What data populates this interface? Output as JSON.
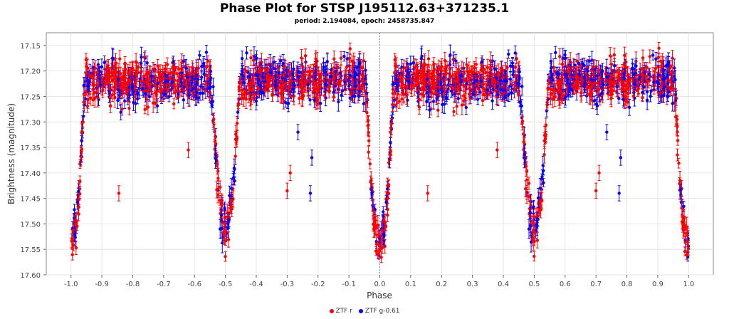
{
  "chart_data": {
    "type": "scatter",
    "title": "Phase Plot for STSP J195112.63+371235.1",
    "subtitle": "period: 2.194084, epoch: 2458735.847",
    "xlabel": "Phase",
    "ylabel": "Brightness (magnitude)",
    "xlim": [
      -1.08,
      1.08
    ],
    "ylim": [
      17.6,
      17.125
    ],
    "y_inverted": true,
    "x_ticks": [
      "-1.0",
      "-0.9",
      "-0.8",
      "-0.7",
      "-0.6",
      "-0.5",
      "-0.4",
      "-0.3",
      "-0.2",
      "-0.1",
      "0.0",
      "0.1",
      "0.2",
      "0.3",
      "0.4",
      "0.5",
      "0.6",
      "0.7",
      "0.8",
      "0.9",
      "1.0"
    ],
    "y_ticks": [
      "17.15",
      "17.20",
      "17.25",
      "17.30",
      "17.35",
      "17.40",
      "17.45",
      "17.50",
      "17.55",
      "17.60"
    ],
    "grid": true,
    "legend_position": "bottom-center",
    "light_curve_model": {
      "out_of_eclipse_mag": 17.22,
      "primary_eclipse": {
        "phase": 0.0,
        "depth_mag": 17.55,
        "half_width": 0.045
      },
      "secondary_eclipse": {
        "phase": 0.5,
        "depth_mag": 17.51,
        "half_width": 0.045
      }
    },
    "outliers": [
      {
        "series": "ZTF r",
        "x": -0.845,
        "y": 17.44
      },
      {
        "series": "ZTF r",
        "x": 0.155,
        "y": 17.44
      },
      {
        "series": "ZTF r",
        "x": -0.29,
        "y": 17.4
      },
      {
        "series": "ZTF r",
        "x": 0.71,
        "y": 17.4
      },
      {
        "series": "ZTF r",
        "x": -0.3,
        "y": 17.435
      },
      {
        "series": "ZTF r",
        "x": 0.7,
        "y": 17.435
      },
      {
        "series": "ZTF r",
        "x": -0.62,
        "y": 17.355
      },
      {
        "series": "ZTF r",
        "x": 0.38,
        "y": 17.355
      },
      {
        "series": "ZTF g-0.61",
        "x": -0.225,
        "y": 17.44
      },
      {
        "series": "ZTF g-0.61",
        "x": 0.775,
        "y": 17.44
      },
      {
        "series": "ZTF g-0.61",
        "x": -0.265,
        "y": 17.32
      },
      {
        "series": "ZTF g-0.61",
        "x": 0.735,
        "y": 17.32
      },
      {
        "series": "ZTF g-0.61",
        "x": -0.22,
        "y": 17.37
      },
      {
        "series": "ZTF g-0.61",
        "x": 0.78,
        "y": 17.37
      }
    ],
    "series": [
      {
        "name": "ZTF r",
        "color": "#ff0000"
      },
      {
        "name": "ZTF g-0.61",
        "color": "#0000ff"
      }
    ],
    "epoch_marker_x": 0.0
  }
}
